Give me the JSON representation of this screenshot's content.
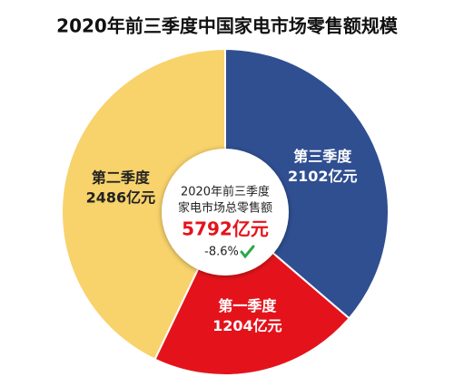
{
  "chart_data": {
    "type": "donut",
    "title": "2020年前三季度中国家电市场零售额规模",
    "categories": [
      "第三季度",
      "第一季度",
      "第二季度"
    ],
    "values": [
      2102,
      1204,
      2486
    ],
    "value_labels": [
      "2102亿元",
      "1204亿元",
      "2486亿元"
    ],
    "colors": [
      "#2f4f91",
      "#e4131b",
      "#f8d26b"
    ],
    "label_colors": [
      "#ffffff",
      "#ffffff",
      "#222222"
    ],
    "center_lines": [
      "2020年前三季度",
      "家电市场总零售额"
    ],
    "center_total": "5792亿元",
    "center_change": "-8.6%"
  }
}
